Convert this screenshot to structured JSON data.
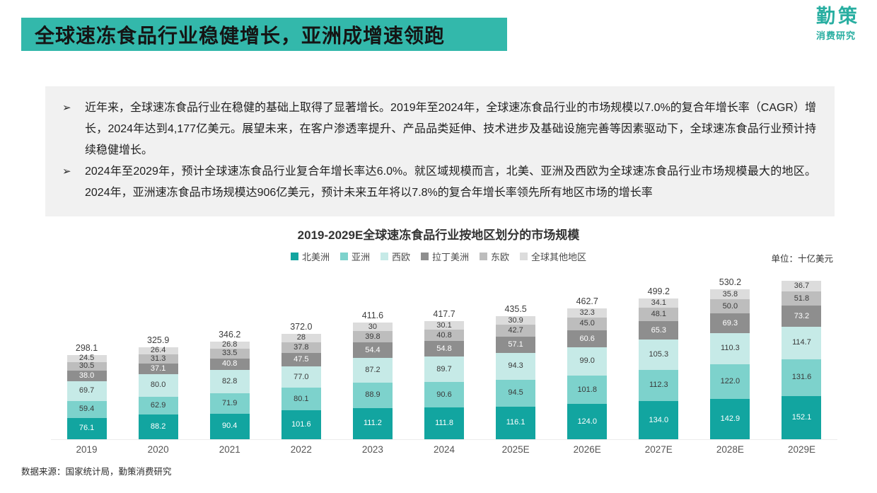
{
  "header": {
    "title": "全球速冻食品行业稳健增长，亚洲成增速领跑",
    "bar_color": "#33B8AB",
    "logo_color": "#28AEA1",
    "logo_line1": "勤策",
    "logo_line2": "消费研究"
  },
  "summary": {
    "bullet_char": "➢",
    "bullets": [
      "近年来，全球速冻食品行业在稳健的基础上取得了显著增长。2019年至2024年，全球速冻食品行业的市场规模以7.0%的复合年增长率（CAGR）增长，2024年达到4,177亿美元。展望未来，在客户渗透率提升、产品品类延伸、技术进步及基础设施完善等因素驱动下，全球速冻食品行业预计持续稳健增长。",
      "2024年至2029年，预计全球速冻食品行业复合年增长率达6.0%。就区域规模而言，北美、亚洲及西欧为全球速冻食品行业市场规模最大的地区。2024年，亚洲速冻食品市场规模达906亿美元，预计未来五年将以7.8%的复合年增长率领先所有地区市场的增长率"
    ]
  },
  "chart": {
    "title": "2019-2029E全球速冻食品行业按地区划分的市场规模",
    "unit_label": "单位：十亿美元"
  },
  "chart_data": {
    "type": "bar",
    "stacked": true,
    "title": "2019-2029E全球速冻食品行业按地区划分的市场规模",
    "ylabel": "十亿美元",
    "ylim": [
      0,
      580
    ],
    "grid": false,
    "legend_position": "top-center",
    "categories": [
      "2019",
      "2020",
      "2021",
      "2022",
      "2023",
      "2024",
      "2025E",
      "2026E",
      "2027E",
      "2028E",
      "2029E"
    ],
    "series": [
      {
        "name": "北美洲",
        "color": "#12A5A0",
        "label_color": "#FFFFFF",
        "values": [
          "76.1",
          "88.2",
          "90.4",
          "101.6",
          "111.2",
          "111.8",
          "116.1",
          "124.0",
          "134.0",
          "142.9",
          "152.1"
        ]
      },
      {
        "name": "亚洲",
        "color": "#7DD2CC",
        "label_color": "#3A3A3A",
        "values": [
          "59.4",
          "62.9",
          "71.9",
          "80.1",
          "88.9",
          "90.6",
          "94.5",
          "101.8",
          "112.3",
          "122.0",
          "131.6"
        ]
      },
      {
        "name": "西欧",
        "color": "#C6EAE7",
        "label_color": "#3A3A3A",
        "values": [
          "69.7",
          "80.0",
          "82.8",
          "77.0",
          "87.2",
          "89.7",
          "94.3",
          "99.0",
          "105.3",
          "110.3",
          "114.7"
        ]
      },
      {
        "name": "拉丁美洲",
        "color": "#8E8E8E",
        "label_color": "#FFFFFF",
        "values": [
          "38.0",
          "37.1",
          "40.8",
          "47.5",
          "54.4",
          "54.8",
          "57.1",
          "60.6",
          "65.3",
          "69.3",
          "73.2"
        ]
      },
      {
        "name": "东欧",
        "color": "#BDBDBD",
        "label_color": "#3A3A3A",
        "values": [
          "30.5",
          "31.3",
          "33.5",
          "37.8",
          "39.8",
          "40.8",
          "42.7",
          "45.0",
          "48.1",
          "50.0",
          "51.8"
        ]
      },
      {
        "name": "全球其他地区",
        "color": "#DCDCDC",
        "label_color": "#3A3A3A",
        "values": [
          "24.5",
          "26.4",
          "26.8",
          "28",
          "30",
          "30.1",
          "30.9",
          "32.3",
          "34.1",
          "35.8",
          "36.7"
        ]
      }
    ],
    "totals": [
      "298.1",
      "325.9",
      "346.2",
      "372.0",
      "411.6",
      "417.7",
      "435.5",
      "462.7",
      "499.2",
      "530.2",
      ""
    ]
  },
  "footer": {
    "source": "数据来源：国家统计局，勤策消费研究"
  }
}
